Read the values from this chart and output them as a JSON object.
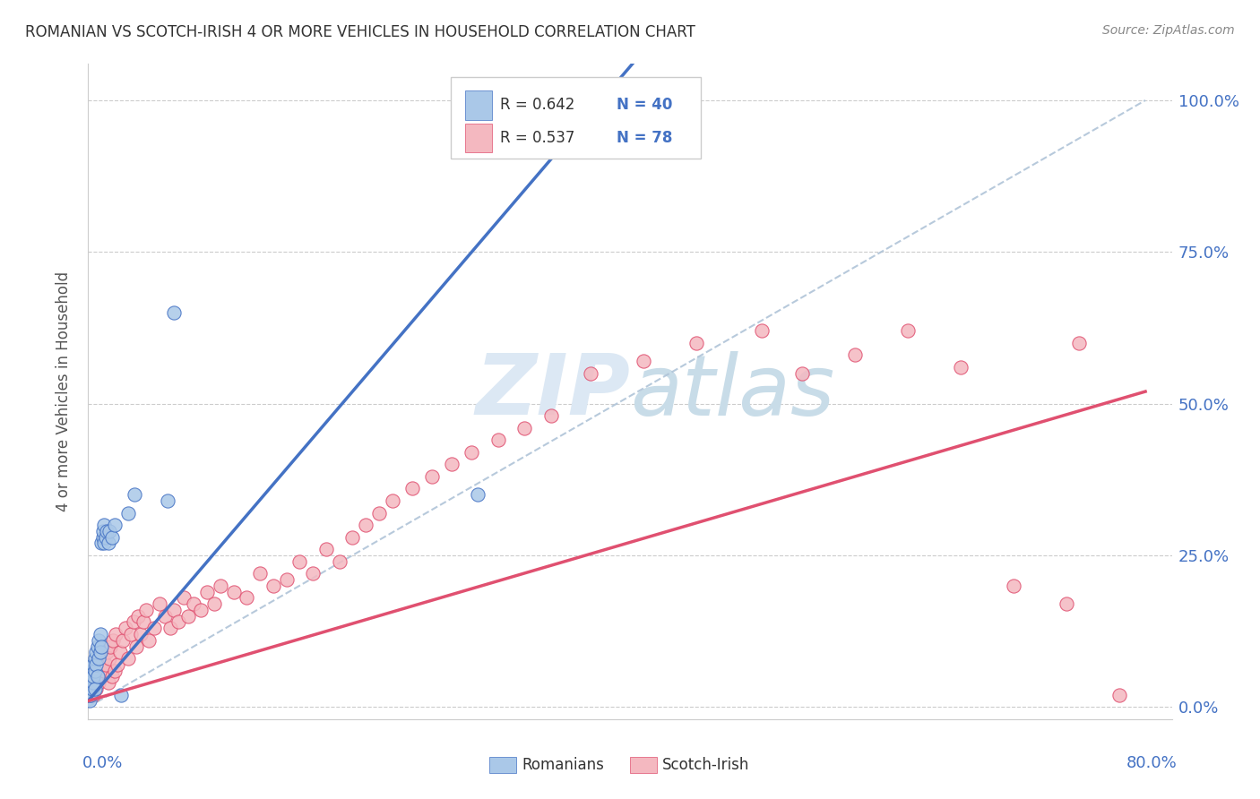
{
  "title": "ROMANIAN VS SCOTCH-IRISH 4 OR MORE VEHICLES IN HOUSEHOLD CORRELATION CHART",
  "source": "Source: ZipAtlas.com",
  "ylabel": "4 or more Vehicles in Household",
  "legend_r1": "R = 0.642",
  "legend_n1": "N = 40",
  "legend_r2": "R = 0.537",
  "legend_n2": "N = 78",
  "legend_label1": "Romanians",
  "legend_label2": "Scotch-Irish",
  "blue_scatter_color": "#aac8e8",
  "pink_scatter_color": "#f4b8c0",
  "blue_line_color": "#4472c4",
  "pink_line_color": "#e05070",
  "ref_line_color": "#b0c4d8",
  "title_color": "#333333",
  "axis_label_color": "#4472c4",
  "watermark_color": "#dce8f4",
  "xlim": [
    0.0,
    0.8
  ],
  "ylim": [
    0.0,
    1.05
  ],
  "blue_trend_x0": 0.0,
  "blue_trend_y0": 0.01,
  "blue_trend_x1": 0.2,
  "blue_trend_y1": 0.52,
  "pink_trend_x0": 0.0,
  "pink_trend_y0": 0.01,
  "pink_trend_x1": 0.8,
  "pink_trend_y1": 0.52,
  "romanians_x": [
    0.001,
    0.001,
    0.002,
    0.002,
    0.002,
    0.003,
    0.003,
    0.003,
    0.004,
    0.004,
    0.004,
    0.005,
    0.005,
    0.005,
    0.006,
    0.006,
    0.007,
    0.007,
    0.008,
    0.008,
    0.009,
    0.009,
    0.01,
    0.01,
    0.011,
    0.011,
    0.012,
    0.012,
    0.013,
    0.014,
    0.015,
    0.016,
    0.018,
    0.02,
    0.025,
    0.03,
    0.035,
    0.06,
    0.065,
    0.295
  ],
  "romanians_y": [
    0.01,
    0.02,
    0.03,
    0.04,
    0.02,
    0.03,
    0.05,
    0.06,
    0.04,
    0.07,
    0.05,
    0.06,
    0.08,
    0.03,
    0.07,
    0.09,
    0.05,
    0.1,
    0.08,
    0.11,
    0.09,
    0.12,
    0.1,
    0.27,
    0.28,
    0.29,
    0.27,
    0.3,
    0.28,
    0.29,
    0.27,
    0.29,
    0.28,
    0.3,
    0.02,
    0.32,
    0.35,
    0.34,
    0.65,
    0.35
  ],
  "scotchirish_x": [
    0.002,
    0.003,
    0.004,
    0.005,
    0.006,
    0.007,
    0.008,
    0.009,
    0.01,
    0.011,
    0.012,
    0.013,
    0.014,
    0.015,
    0.016,
    0.017,
    0.018,
    0.019,
    0.02,
    0.021,
    0.022,
    0.024,
    0.026,
    0.028,
    0.03,
    0.032,
    0.034,
    0.036,
    0.038,
    0.04,
    0.042,
    0.044,
    0.046,
    0.05,
    0.054,
    0.058,
    0.062,
    0.065,
    0.068,
    0.072,
    0.076,
    0.08,
    0.085,
    0.09,
    0.095,
    0.1,
    0.11,
    0.12,
    0.13,
    0.14,
    0.15,
    0.16,
    0.17,
    0.18,
    0.19,
    0.2,
    0.21,
    0.22,
    0.23,
    0.245,
    0.26,
    0.275,
    0.29,
    0.31,
    0.33,
    0.35,
    0.38,
    0.42,
    0.46,
    0.51,
    0.54,
    0.58,
    0.62,
    0.66,
    0.7,
    0.74,
    0.78,
    0.75
  ],
  "scotchirish_y": [
    0.03,
    0.04,
    0.02,
    0.05,
    0.03,
    0.06,
    0.04,
    0.07,
    0.05,
    0.08,
    0.06,
    0.07,
    0.09,
    0.04,
    0.08,
    0.1,
    0.05,
    0.11,
    0.06,
    0.12,
    0.07,
    0.09,
    0.11,
    0.13,
    0.08,
    0.12,
    0.14,
    0.1,
    0.15,
    0.12,
    0.14,
    0.16,
    0.11,
    0.13,
    0.17,
    0.15,
    0.13,
    0.16,
    0.14,
    0.18,
    0.15,
    0.17,
    0.16,
    0.19,
    0.17,
    0.2,
    0.19,
    0.18,
    0.22,
    0.2,
    0.21,
    0.24,
    0.22,
    0.26,
    0.24,
    0.28,
    0.3,
    0.32,
    0.34,
    0.36,
    0.38,
    0.4,
    0.42,
    0.44,
    0.46,
    0.48,
    0.55,
    0.57,
    0.6,
    0.62,
    0.55,
    0.58,
    0.62,
    0.56,
    0.2,
    0.17,
    0.02,
    0.6
  ]
}
